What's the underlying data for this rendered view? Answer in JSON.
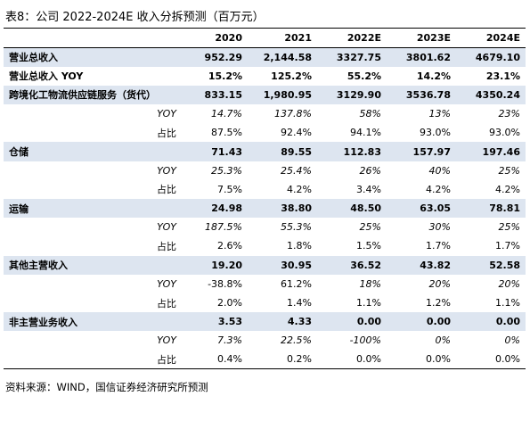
{
  "header": {
    "title": "表8：公司 2022-2024E 收入分拆预测（百万元）"
  },
  "table": {
    "columns": [
      "",
      "2020",
      "2021",
      "2022E",
      "2023E",
      "2024E"
    ],
    "rows": [
      [
        "营业总收入",
        "952.29",
        "2,144.58",
        "3327.75",
        "3801.62",
        "4679.10"
      ],
      [
        "营业总收入 YOY",
        "15.2%",
        "125.2%",
        "55.2%",
        "14.2%",
        "23.1%"
      ],
      [
        "跨境化工物流供应链服务（货代）",
        "833.15",
        "1,980.95",
        "3129.90",
        "3536.78",
        "4350.24"
      ],
      [
        "YOY",
        "14.7%",
        "137.8%",
        "58%",
        "13%",
        "23%"
      ],
      [
        "占比",
        "87.5%",
        "92.4%",
        "94.1%",
        "93.0%",
        "93.0%"
      ],
      [
        "仓储",
        "71.43",
        "89.55",
        "112.83",
        "157.97",
        "197.46"
      ],
      [
        "YOY",
        "25.3%",
        "25.4%",
        "26%",
        "40%",
        "25%"
      ],
      [
        "占比",
        "7.5%",
        "4.2%",
        "3.4%",
        "4.2%",
        "4.2%"
      ],
      [
        "运输",
        "24.98",
        "38.80",
        "48.50",
        "63.05",
        "78.81"
      ],
      [
        "YOY",
        "187.5%",
        "55.3%",
        "25%",
        "30%",
        "25%"
      ],
      [
        "占比",
        "2.6%",
        "1.8%",
        "1.5%",
        "1.7%",
        "1.7%"
      ],
      [
        "其他主营收入",
        "19.20",
        "30.95",
        "36.52",
        "43.82",
        "52.58"
      ],
      [
        "YOY",
        "-38.8%",
        "61.2%",
        "18%",
        "20%",
        "20%"
      ],
      [
        "占比",
        "2.0%",
        "1.4%",
        "1.1%",
        "1.2%",
        "1.1%"
      ],
      [
        "非主营业务收入",
        "3.53",
        "4.33",
        "0.00",
        "0.00",
        "0.00"
      ],
      [
        "YOY",
        "7.3%",
        "22.5%",
        "-100%",
        "0%",
        "0%"
      ],
      [
        "占比",
        "0.4%",
        "0.2%",
        "0.0%",
        "0.0%",
        "0.0%"
      ]
    ]
  },
  "footer": {
    "source": "资料来源：WIND，国信证券经济研究所预测"
  }
}
